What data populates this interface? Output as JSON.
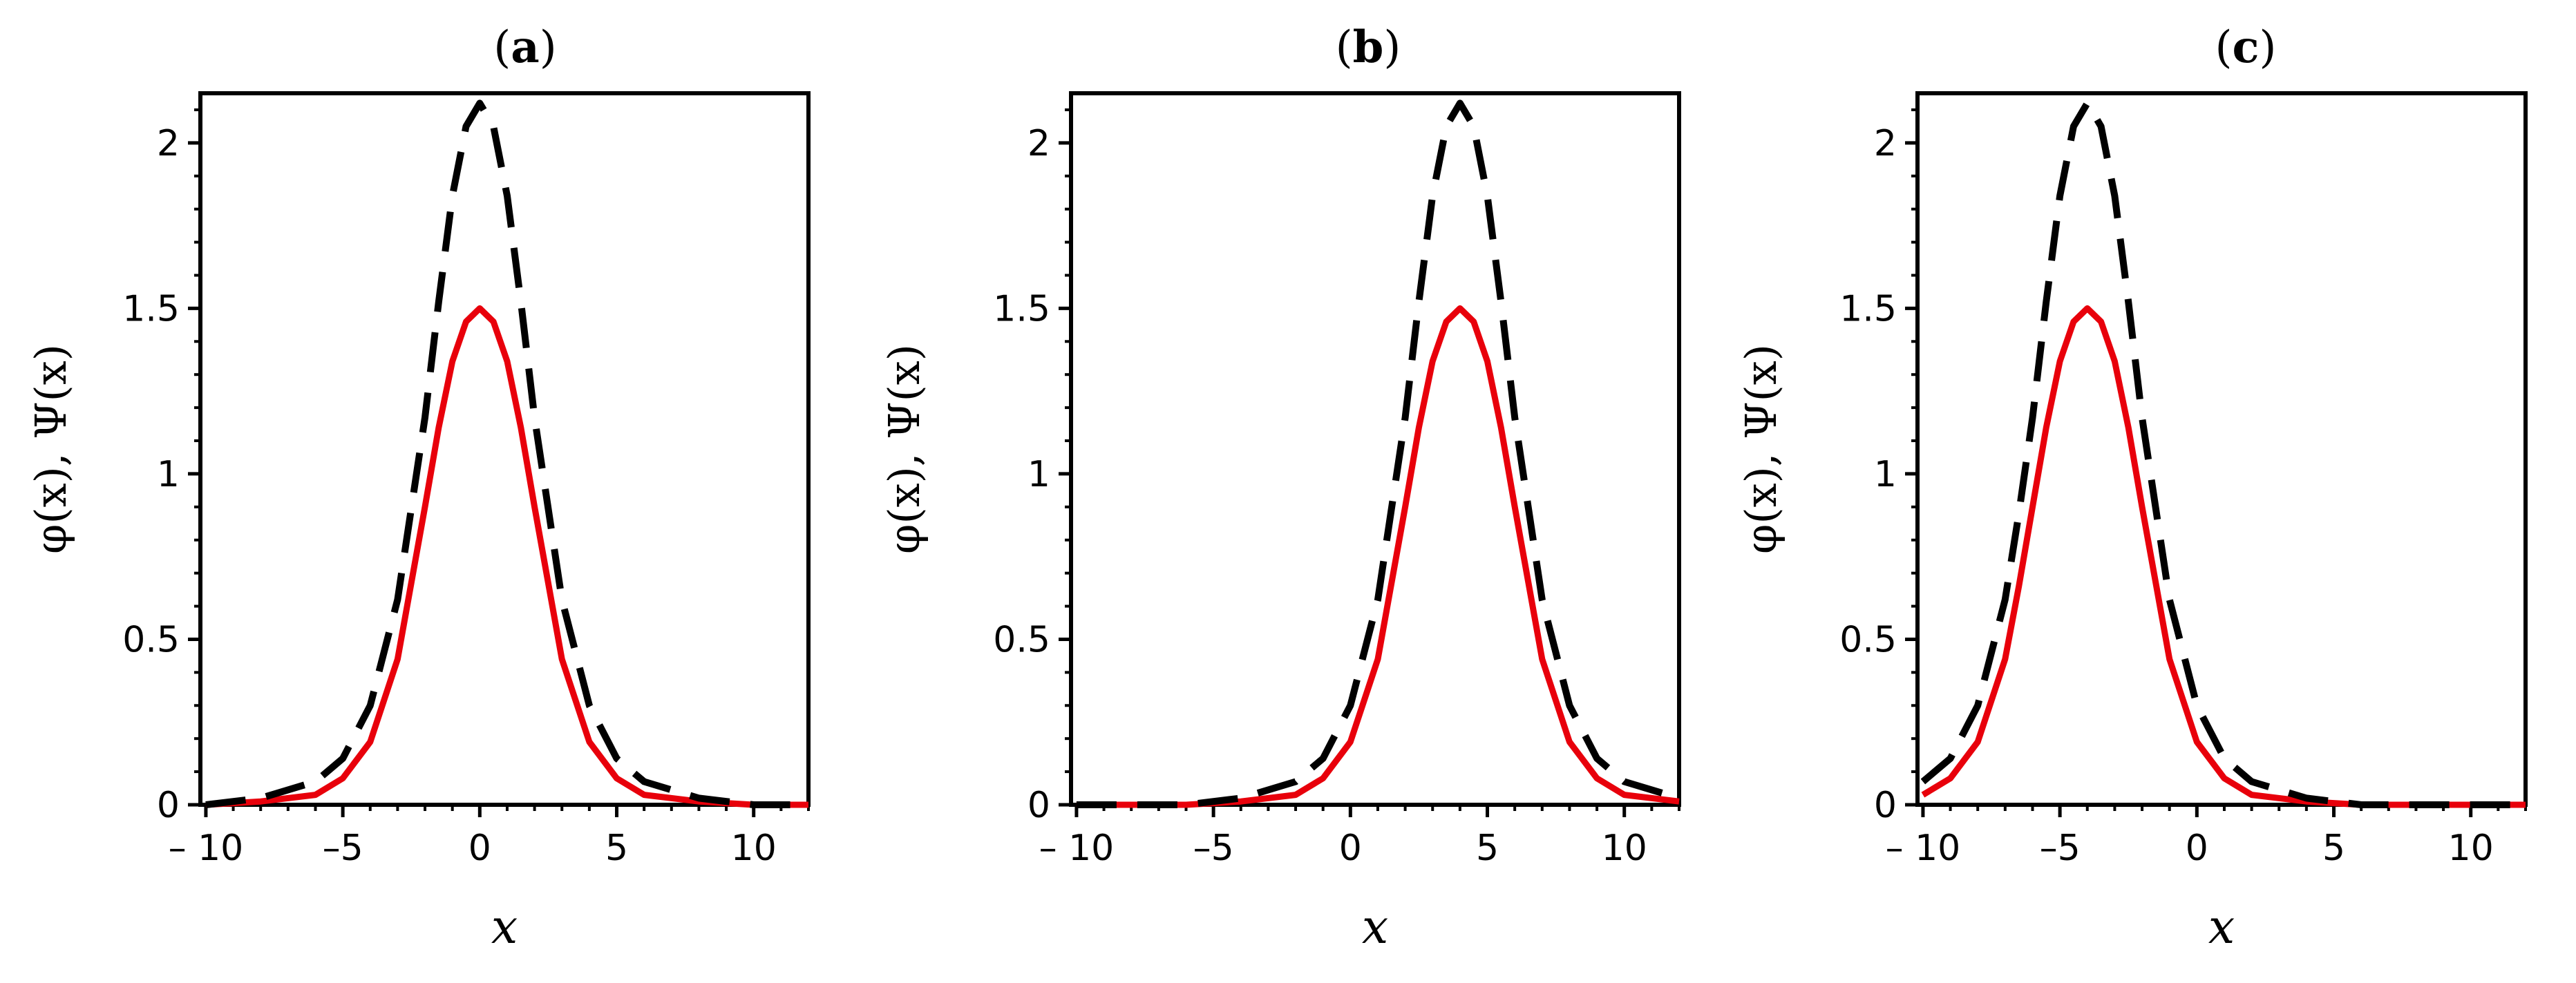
{
  "chart_data": [
    {
      "type": "line",
      "panel_label": "a",
      "xlabel": "x",
      "ylabel": "φ(x), Ψ(x)",
      "xlim": [
        -10.2,
        12
      ],
      "ylim": [
        0,
        2.15
      ],
      "xticks": [
        -10,
        -5,
        0,
        5,
        10
      ],
      "xtick_labels": [
        "– 10",
        "–5",
        "0",
        "5",
        "10"
      ],
      "yticks": [
        0,
        0.5,
        1,
        1.5,
        2
      ],
      "ytick_labels": [
        "0",
        "0.5",
        "1",
        "1.5",
        "2"
      ],
      "grid": false,
      "series": [
        {
          "name": "φ(x)",
          "style": "solid",
          "color": "#e8000b",
          "x": [
            -10,
            -8,
            -6,
            -5,
            -4,
            -3,
            -2,
            -1.5,
            -1,
            -0.5,
            0,
            0.5,
            1,
            1.5,
            2,
            3,
            4,
            5,
            6,
            8,
            10,
            12
          ],
          "values": [
            0.0,
            0.01,
            0.03,
            0.08,
            0.19,
            0.44,
            0.9,
            1.14,
            1.34,
            1.46,
            1.5,
            1.46,
            1.34,
            1.14,
            0.9,
            0.44,
            0.19,
            0.08,
            0.03,
            0.01,
            0.0,
            0.0
          ]
        },
        {
          "name": "Ψ(x)",
          "style": "dashed",
          "color": "#000000",
          "x": [
            -10,
            -8,
            -6,
            -5,
            -4,
            -3,
            -2,
            -1.5,
            -1,
            -0.5,
            0,
            0.5,
            1,
            1.5,
            2,
            3,
            4,
            5,
            6,
            8,
            10,
            12
          ],
          "values": [
            0.0,
            0.02,
            0.07,
            0.14,
            0.3,
            0.62,
            1.17,
            1.52,
            1.84,
            2.05,
            2.12,
            2.05,
            1.84,
            1.52,
            1.17,
            0.62,
            0.3,
            0.14,
            0.07,
            0.02,
            0.0,
            0.0
          ]
        }
      ]
    },
    {
      "type": "line",
      "panel_label": "b",
      "xlabel": "x",
      "ylabel": "φ(x), Ψ(x)",
      "xlim": [
        -10.2,
        12
      ],
      "ylim": [
        0,
        2.15
      ],
      "xticks": [
        -10,
        -5,
        0,
        5,
        10
      ],
      "xtick_labels": [
        "– 10",
        "–5",
        "0",
        "5",
        "10"
      ],
      "yticks": [
        0,
        0.5,
        1,
        1.5,
        2
      ],
      "ytick_labels": [
        "0",
        "0.5",
        "1",
        "1.5",
        "2"
      ],
      "grid": false,
      "series": [
        {
          "name": "φ(x)",
          "style": "solid",
          "color": "#e8000b",
          "x": [
            -10,
            -6,
            -4,
            -2,
            -1,
            0,
            1,
            2,
            2.5,
            3,
            3.5,
            4,
            4.5,
            5,
            5.5,
            6,
            7,
            8,
            9,
            10,
            12
          ],
          "values": [
            0.0,
            0.0,
            0.01,
            0.03,
            0.08,
            0.19,
            0.44,
            0.9,
            1.14,
            1.34,
            1.46,
            1.5,
            1.46,
            1.34,
            1.14,
            0.9,
            0.44,
            0.19,
            0.08,
            0.03,
            0.01
          ]
        },
        {
          "name": "Ψ(x)",
          "style": "dashed",
          "color": "#000000",
          "x": [
            -10,
            -6,
            -4,
            -2,
            -1,
            0,
            1,
            2,
            2.5,
            3,
            3.5,
            4,
            4.5,
            5,
            5.5,
            6,
            7,
            8,
            9,
            10,
            12
          ],
          "values": [
            0.0,
            0.0,
            0.02,
            0.07,
            0.14,
            0.3,
            0.62,
            1.17,
            1.52,
            1.84,
            2.05,
            2.12,
            2.05,
            1.84,
            1.52,
            1.17,
            0.62,
            0.3,
            0.14,
            0.07,
            0.02
          ]
        }
      ]
    },
    {
      "type": "line",
      "panel_label": "c",
      "xlabel": "x",
      "ylabel": "φ(x), Ψ(x)",
      "xlim": [
        -10.2,
        12
      ],
      "ylim": [
        0,
        2.15
      ],
      "xticks": [
        -10,
        -5,
        0,
        5,
        10
      ],
      "xtick_labels": [
        "– 10",
        "–5",
        "0",
        "5",
        "10"
      ],
      "yticks": [
        0,
        0.5,
        1,
        1.5,
        2
      ],
      "ytick_labels": [
        "0",
        "0.5",
        "1",
        "1.5",
        "2"
      ],
      "grid": false,
      "series": [
        {
          "name": "φ(x)",
          "style": "solid",
          "color": "#e8000b",
          "x": [
            -10,
            -9,
            -8,
            -7,
            -6.5,
            -6,
            -5.5,
            -5,
            -4.5,
            -4,
            -3.5,
            -3,
            -2.5,
            -2,
            -1,
            0,
            1,
            2,
            4,
            6,
            8,
            10,
            12
          ],
          "values": [
            0.03,
            0.08,
            0.19,
            0.44,
            0.66,
            0.9,
            1.14,
            1.34,
            1.46,
            1.5,
            1.46,
            1.34,
            1.14,
            0.9,
            0.44,
            0.19,
            0.08,
            0.03,
            0.01,
            0.0,
            0.0,
            0.0,
            0.0
          ]
        },
        {
          "name": "Ψ(x)",
          "style": "dashed",
          "color": "#000000",
          "x": [
            -10,
            -9,
            -8,
            -7,
            -6.5,
            -6,
            -5.5,
            -5,
            -4.5,
            -4,
            -3.5,
            -3,
            -2.5,
            -2,
            -1,
            0,
            1,
            2,
            4,
            6,
            8,
            10,
            12
          ],
          "values": [
            0.07,
            0.14,
            0.3,
            0.62,
            0.88,
            1.17,
            1.52,
            1.84,
            2.05,
            2.12,
            2.05,
            1.84,
            1.52,
            1.17,
            0.62,
            0.3,
            0.14,
            0.07,
            0.02,
            0.0,
            0.0,
            0.0,
            0.0
          ]
        }
      ]
    }
  ]
}
